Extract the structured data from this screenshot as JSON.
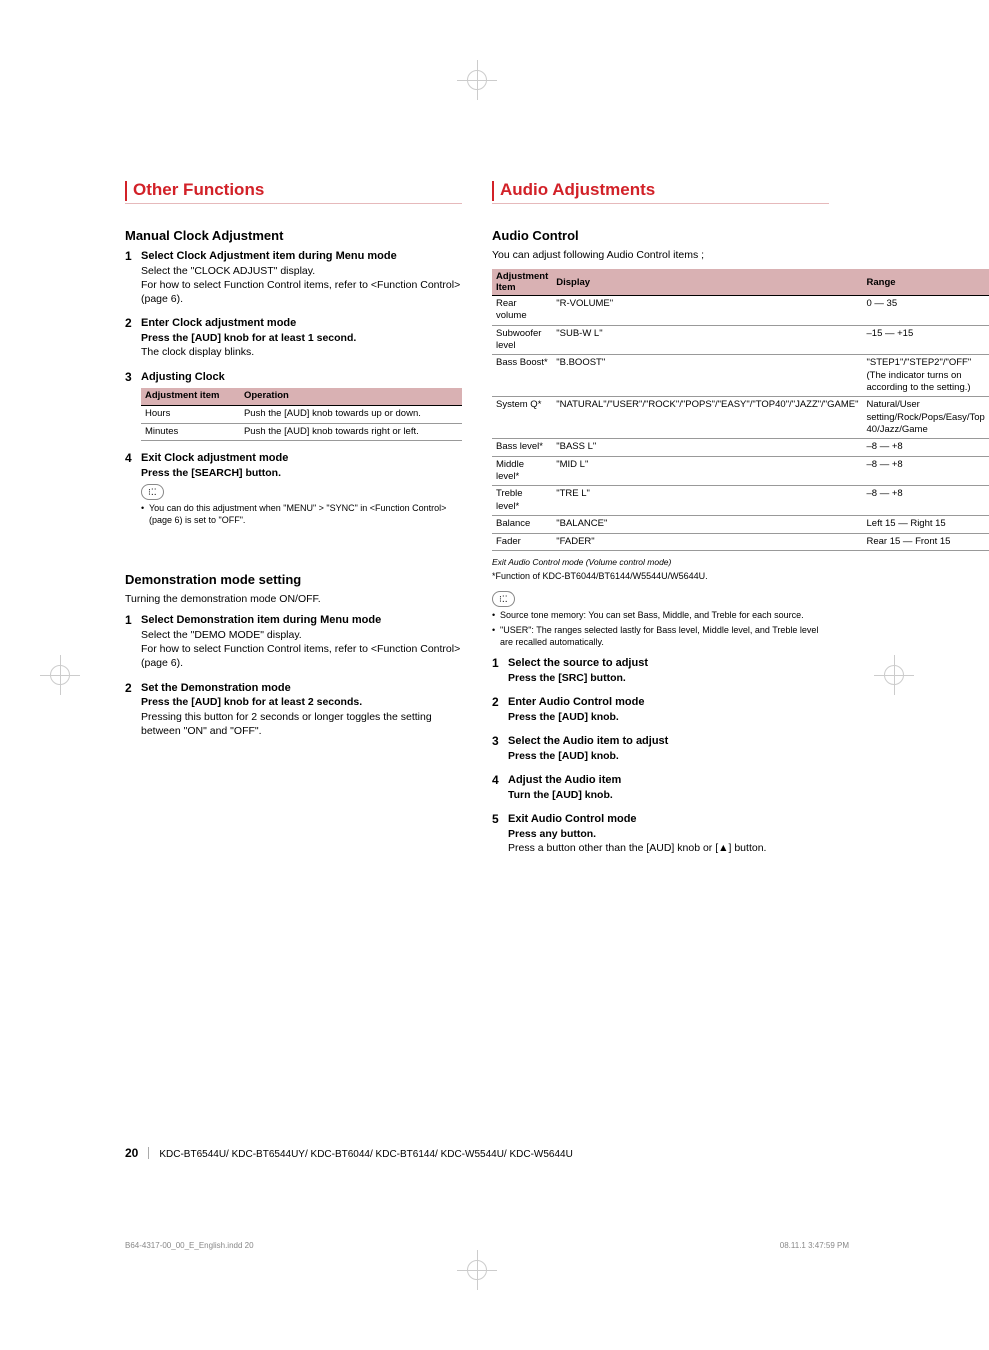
{
  "left": {
    "h1": "Other Functions",
    "section1": {
      "h2": "Manual Clock Adjustment",
      "steps": [
        {
          "title": "Select Clock Adjustment item during Menu mode",
          "body": "Select the \"CLOCK ADJUST\" display.\nFor how to select Function Control items, refer to <Function Control> (page 6)."
        },
        {
          "title": "Enter Clock adjustment mode",
          "action": "Press the [AUD] knob for at least 1 second.",
          "body": "The clock display blinks."
        },
        {
          "title": "Adjusting Clock",
          "table": {
            "headers": [
              "Adjustment item",
              "Operation"
            ],
            "rows": [
              [
                "Hours",
                "Push the [AUD] knob towards up or down."
              ],
              [
                "Minutes",
                "Push the [AUD] knob towards right or left."
              ]
            ]
          }
        },
        {
          "title": "Exit Clock adjustment mode",
          "action": "Press the [SEARCH] button.",
          "note_icon": "⁝⁚⁚",
          "notes": [
            "You can do this adjustment when \"MENU\" > \"SYNC\" in <Function Control> (page 6) is set to \"OFF\"."
          ]
        }
      ]
    },
    "section2": {
      "h2": "Demonstration mode setting",
      "intro": "Turning the demonstration mode ON/OFF.",
      "steps": [
        {
          "title": "Select Demonstration item during Menu mode",
          "body": "Select the \"DEMO MODE\" display.\nFor how to select Function Control items, refer to <Function Control> (page 6)."
        },
        {
          "title": "Set the Demonstration mode",
          "action": "Press the [AUD] knob for at least 2 seconds.",
          "body": "Pressing this button for 2 seconds or longer toggles the setting between \"ON\" and \"OFF\"."
        }
      ]
    }
  },
  "right": {
    "h1": "Audio Adjustments",
    "section1": {
      "h2": "Audio Control",
      "intro": "You can adjust following Audio Control items ;",
      "table": {
        "headers": [
          "Adjustment Item",
          "Display",
          "Range"
        ],
        "rows": [
          [
            "Rear volume",
            "\"R-VOLUME\"",
            "0 — 35"
          ],
          [
            "Subwoofer level",
            "\"SUB-W L\"",
            "–15 — +15"
          ],
          [
            "Bass Boost*",
            "\"B.BOOST\"",
            "\"STEP1\"/\"STEP2\"/\"OFF\"\n(The indicator turns on according to the setting.)"
          ],
          [
            "System Q*",
            "\"NATURAL\"/\"USER\"/\"ROCK\"/\"POPS\"/\"EASY\"/\"TOP40\"/\"JAZZ\"/\"GAME\"",
            "Natural/User setting/Rock/Pops/Easy/Top 40/Jazz/Game"
          ],
          [
            "Bass level*",
            "\"BASS L\"",
            "–8 — +8"
          ],
          [
            "Middle level*",
            "\"MID L\"",
            "–8 — +8"
          ],
          [
            "Treble level*",
            "\"TRE L\"",
            "–8 — +8"
          ],
          [
            "Balance",
            "\"BALANCE\"",
            "Left 15 — Right 15"
          ],
          [
            "Fader",
            "\"FADER\"",
            "Rear 15 — Front 15"
          ]
        ],
        "caption": "Exit Audio Control mode  (Volume control mode)"
      },
      "footnote": "*Function of KDC-BT6044/BT6144/W5544U/W5644U.",
      "note_icon": "⁝⁚⁚",
      "notes": [
        "Source tone memory: You can set Bass, Middle, and Treble for each source.",
        "\"USER\": The ranges selected lastly for Bass level, Middle level, and Treble level are recalled automatically."
      ],
      "steps": [
        {
          "title": "Select the source to adjust",
          "action": "Press the [SRC] button."
        },
        {
          "title": "Enter Audio Control mode",
          "action": "Press the [AUD] knob."
        },
        {
          "title": "Select the Audio item to adjust",
          "action": "Press the [AUD] knob."
        },
        {
          "title": "Adjust the Audio item",
          "action": "Turn the [AUD] knob."
        },
        {
          "title": "Exit Audio Control mode",
          "action": "Press any button.",
          "body": "Press a button other than the [AUD] knob or [▲] button."
        }
      ]
    }
  },
  "footer": {
    "page": "20",
    "models": "KDC-BT6544U/ KDC-BT6544UY/ KDC-BT6044/ KDC-BT6144/ KDC-W5544U/ KDC-W5644U"
  },
  "meta": {
    "left": "B64-4317-00_00_E_English.indd   20",
    "right": "08.11.1   3:47:59 PM"
  }
}
